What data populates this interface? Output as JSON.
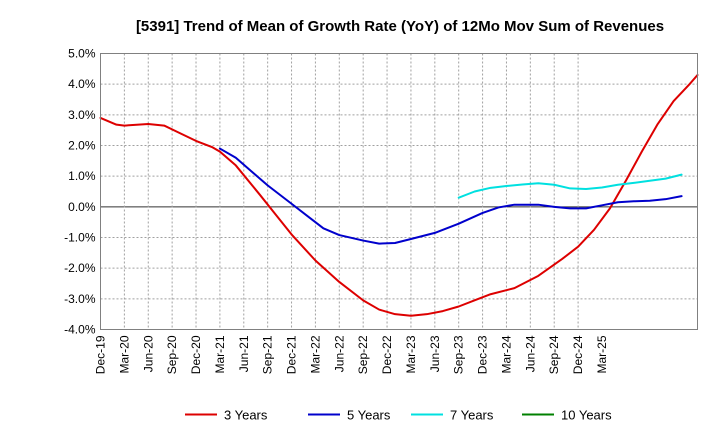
{
  "chart_data": {
    "type": "line",
    "title": "[5391]  Trend of Mean of Growth Rate (YoY) of 12Mo Mov Sum of Revenues",
    "xlabel": "",
    "ylabel": "",
    "ylim": [
      -4.0,
      5.0
    ],
    "y_ticks": [
      5.0,
      4.0,
      3.0,
      2.0,
      1.0,
      0.0,
      -1.0,
      -2.0,
      -3.0,
      -4.0
    ],
    "y_tick_labels": [
      "5.0%",
      "4.0%",
      "3.0%",
      "2.0%",
      "1.0%",
      "0.0%",
      "-1.0%",
      "-2.0%",
      "-3.0%",
      "-4.0%"
    ],
    "x_tick_labels": [
      "Dec-19",
      "Mar-20",
      "Jun-20",
      "Sep-20",
      "Dec-20",
      "Mar-21",
      "Jun-21",
      "Sep-21",
      "Dec-21",
      "Mar-22",
      "Jun-22",
      "Sep-22",
      "Dec-22",
      "Mar-23",
      "Jun-23",
      "Sep-23",
      "Dec-23",
      "Mar-24",
      "Jun-24",
      "Sep-24",
      "Dec-24",
      "Mar-25"
    ],
    "x_range_months": [
      0,
      63
    ],
    "grid": true,
    "legend_position": "bottom",
    "series": [
      {
        "name": "3 Years",
        "color": "#dd0000",
        "points": [
          [
            0,
            2.9
          ],
          [
            2,
            2.68
          ],
          [
            3,
            2.65
          ],
          [
            6,
            2.7
          ],
          [
            8,
            2.65
          ],
          [
            10,
            2.4
          ],
          [
            12,
            2.15
          ],
          [
            14,
            1.95
          ],
          [
            15,
            1.8
          ],
          [
            17,
            1.35
          ],
          [
            20,
            0.4
          ],
          [
            22,
            -0.25
          ],
          [
            24,
            -0.9
          ],
          [
            27,
            -1.75
          ],
          [
            30,
            -2.45
          ],
          [
            33,
            -3.05
          ],
          [
            35,
            -3.35
          ],
          [
            37,
            -3.5
          ],
          [
            39,
            -3.55
          ],
          [
            41,
            -3.5
          ],
          [
            43,
            -3.4
          ],
          [
            45,
            -3.25
          ],
          [
            47,
            -3.05
          ],
          [
            49,
            -2.85
          ],
          [
            52,
            -2.65
          ],
          [
            55,
            -2.25
          ],
          [
            58,
            -1.7
          ],
          [
            60,
            -1.3
          ],
          [
            62,
            -0.75
          ],
          [
            64,
            -0.05
          ],
          [
            66,
            0.85
          ],
          [
            68,
            1.8
          ],
          [
            70,
            2.7
          ],
          [
            72,
            3.45
          ],
          [
            74,
            4.0
          ],
          [
            75,
            4.3
          ]
        ]
      },
      {
        "name": "5 Years",
        "color": "#0000cc",
        "points": [
          [
            15,
            1.9
          ],
          [
            17,
            1.6
          ],
          [
            19,
            1.15
          ],
          [
            21,
            0.7
          ],
          [
            24,
            0.1
          ],
          [
            26,
            -0.3
          ],
          [
            28,
            -0.7
          ],
          [
            30,
            -0.92
          ],
          [
            33,
            -1.1
          ],
          [
            35,
            -1.2
          ],
          [
            37,
            -1.18
          ],
          [
            39,
            -1.05
          ],
          [
            42,
            -0.85
          ],
          [
            45,
            -0.55
          ],
          [
            48,
            -0.2
          ],
          [
            50,
            -0.02
          ],
          [
            52,
            0.07
          ],
          [
            55,
            0.07
          ],
          [
            57,
            0.0
          ],
          [
            59,
            -0.05
          ],
          [
            61,
            -0.05
          ],
          [
            63,
            0.05
          ],
          [
            65,
            0.15
          ],
          [
            67,
            0.18
          ],
          [
            69,
            0.2
          ],
          [
            71,
            0.25
          ],
          [
            73,
            0.35
          ]
        ]
      },
      {
        "name": "7 Years",
        "color": "#00e0e0",
        "points": [
          [
            45,
            0.3
          ],
          [
            47,
            0.5
          ],
          [
            49,
            0.62
          ],
          [
            51,
            0.68
          ],
          [
            53,
            0.73
          ],
          [
            55,
            0.77
          ],
          [
            57,
            0.72
          ],
          [
            59,
            0.6
          ],
          [
            61,
            0.58
          ],
          [
            63,
            0.63
          ],
          [
            65,
            0.72
          ],
          [
            67,
            0.78
          ],
          [
            69,
            0.85
          ],
          [
            71,
            0.92
          ],
          [
            73,
            1.05
          ]
        ]
      },
      {
        "name": "10 Years",
        "color": "#008000",
        "points": []
      }
    ]
  }
}
